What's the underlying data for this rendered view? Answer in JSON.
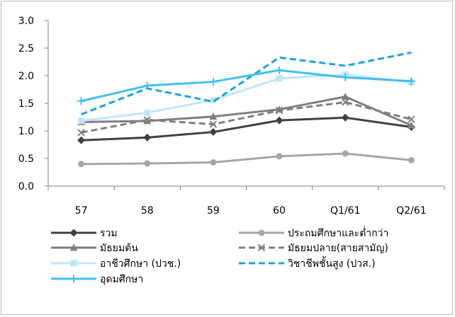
{
  "chart_data": {
    "type": "line",
    "title": "",
    "xlabel": "",
    "ylabel": "",
    "categories": [
      "57",
      "58",
      "59",
      "60",
      "Q1/61",
      "Q2/61"
    ],
    "ylim": [
      0,
      3
    ],
    "yticks": [
      "0.0",
      "0.5",
      "1.0",
      "1.5",
      "2.0",
      "2.5",
      "3.0"
    ],
    "grid": false,
    "legend_position": "bottom",
    "series": [
      {
        "name": "รวม",
        "values": [
          0.83,
          0.88,
          0.98,
          1.19,
          1.24,
          1.07
        ],
        "color": "#404040",
        "dash": false,
        "marker": "diamond"
      },
      {
        "name": "ประถมศึกษาและต่ำกว่า",
        "values": [
          0.4,
          0.41,
          0.43,
          0.54,
          0.59,
          0.47
        ],
        "color": "#a6a6a6",
        "dash": false,
        "marker": "circle"
      },
      {
        "name": "มัธยมต้น",
        "values": [
          1.16,
          1.18,
          1.26,
          1.39,
          1.62,
          1.1
        ],
        "color": "#7f7f7f",
        "dash": false,
        "marker": "triangle"
      },
      {
        "name": "มัธยมปลาย(สายสามัญ)",
        "values": [
          0.97,
          1.2,
          1.12,
          1.37,
          1.52,
          1.21
        ],
        "color": "#7f7f7f",
        "dash": true,
        "marker": "x"
      },
      {
        "name": "อาชีวศึกษา (ปวช.)",
        "values": [
          1.18,
          1.33,
          1.56,
          1.95,
          2.02,
          1.88
        ],
        "color": "#bfe6f7",
        "dash": false,
        "marker": "square"
      },
      {
        "name": "วิชาชีพชั้นสูง (ปวส.)",
        "values": [
          1.3,
          1.77,
          1.53,
          2.33,
          2.18,
          2.42
        ],
        "color": "#1ca3dc",
        "dash": true,
        "marker": "none"
      },
      {
        "name": "อุดมศึกษา",
        "values": [
          1.54,
          1.82,
          1.89,
          2.1,
          1.97,
          1.9
        ],
        "color": "#40c0f0",
        "dash": false,
        "marker": "plus"
      }
    ]
  }
}
